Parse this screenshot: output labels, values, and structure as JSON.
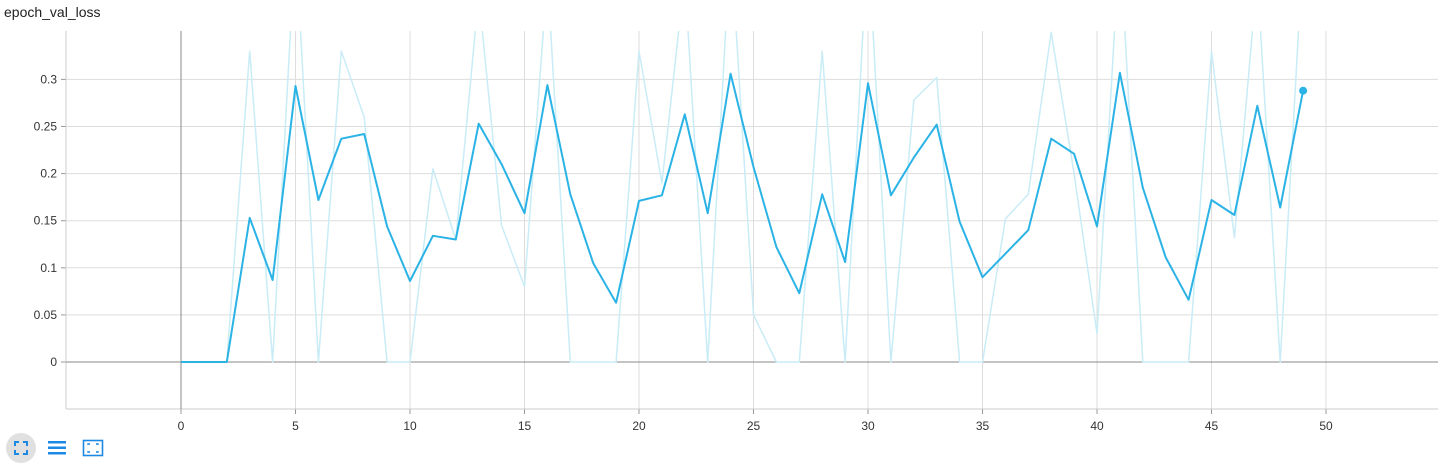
{
  "chart_data": {
    "type": "line",
    "title": "epoch_val_loss",
    "xlabel": "",
    "ylabel": "",
    "xlim": [
      -5,
      55
    ],
    "ylim": [
      -0.05,
      0.35
    ],
    "x_ticks": [
      0,
      5,
      10,
      15,
      20,
      25,
      30,
      35,
      40,
      45,
      50
    ],
    "x_tick_labels": [
      "0",
      "5",
      "10",
      "15",
      "20",
      "25",
      "30",
      "35",
      "40",
      "45",
      "50"
    ],
    "y_ticks": [
      0,
      0.05,
      0.1,
      0.15,
      0.2,
      0.25,
      0.3
    ],
    "y_tick_labels": [
      "0",
      "0.05",
      "0.1",
      "0.15",
      "0.2",
      "0.25",
      "0.3"
    ],
    "grid": true,
    "series": [
      {
        "role": "raw",
        "color": "#c9ecf7",
        "x": [
          0,
          1,
          2,
          3,
          4,
          5,
          6,
          7,
          8,
          9,
          10,
          11,
          12,
          13,
          14,
          15,
          16,
          17,
          18,
          19,
          20,
          21,
          22,
          23,
          24,
          25,
          26,
          27,
          28,
          29,
          30,
          31,
          32,
          33,
          34,
          35,
          36,
          37,
          38,
          39,
          40,
          41,
          42,
          43,
          44,
          45,
          46,
          47,
          48,
          49
        ],
        "values": [
          0,
          0,
          0,
          0.33,
          0,
          0.45,
          0,
          0.33,
          0.26,
          0,
          0,
          0.205,
          0.13,
          0.39,
          0.145,
          0.08,
          0.41,
          0,
          0,
          0,
          0.33,
          0.19,
          0.41,
          0,
          0.45,
          0.05,
          0,
          0,
          0.33,
          0,
          0.45,
          0,
          0.278,
          0.302,
          0,
          0,
          0.152,
          0.178,
          0.35,
          0.2,
          0.03,
          0.45,
          0,
          0,
          0,
          0.33,
          0.132,
          0.41,
          0,
          0.44
        ]
      },
      {
        "role": "smoothed",
        "color": "#2bb3e6",
        "x": [
          0,
          1,
          2,
          3,
          4,
          5,
          6,
          7,
          8,
          9,
          10,
          11,
          12,
          13,
          14,
          15,
          16,
          17,
          18,
          19,
          20,
          21,
          22,
          23,
          24,
          25,
          26,
          27,
          28,
          29,
          30,
          31,
          32,
          33,
          34,
          35,
          36,
          37,
          38,
          39,
          40,
          41,
          42,
          43,
          44,
          45,
          46,
          47,
          48,
          49
        ],
        "values": [
          0,
          0,
          0,
          0.153,
          0.087,
          0.293,
          0.172,
          0.237,
          0.242,
          0.144,
          0.086,
          0.134,
          0.13,
          0.253,
          0.21,
          0.158,
          0.294,
          0.178,
          0.105,
          0.063,
          0.171,
          0.177,
          0.263,
          0.158,
          0.306,
          0.207,
          0.122,
          0.073,
          0.178,
          0.106,
          0.296,
          0.177,
          0.217,
          0.252,
          0.149,
          0.09,
          0.115,
          0.14,
          0.237,
          0.221,
          0.144,
          0.307,
          0.185,
          0.111,
          0.066,
          0.172,
          0.156,
          0.272,
          0.164,
          0.288
        ]
      }
    ]
  },
  "toolbar": {
    "buttons": [
      {
        "icon": "expand-icon",
        "active": true
      },
      {
        "icon": "lines-icon",
        "active": false
      },
      {
        "icon": "fit-domain-icon",
        "active": false
      }
    ]
  }
}
